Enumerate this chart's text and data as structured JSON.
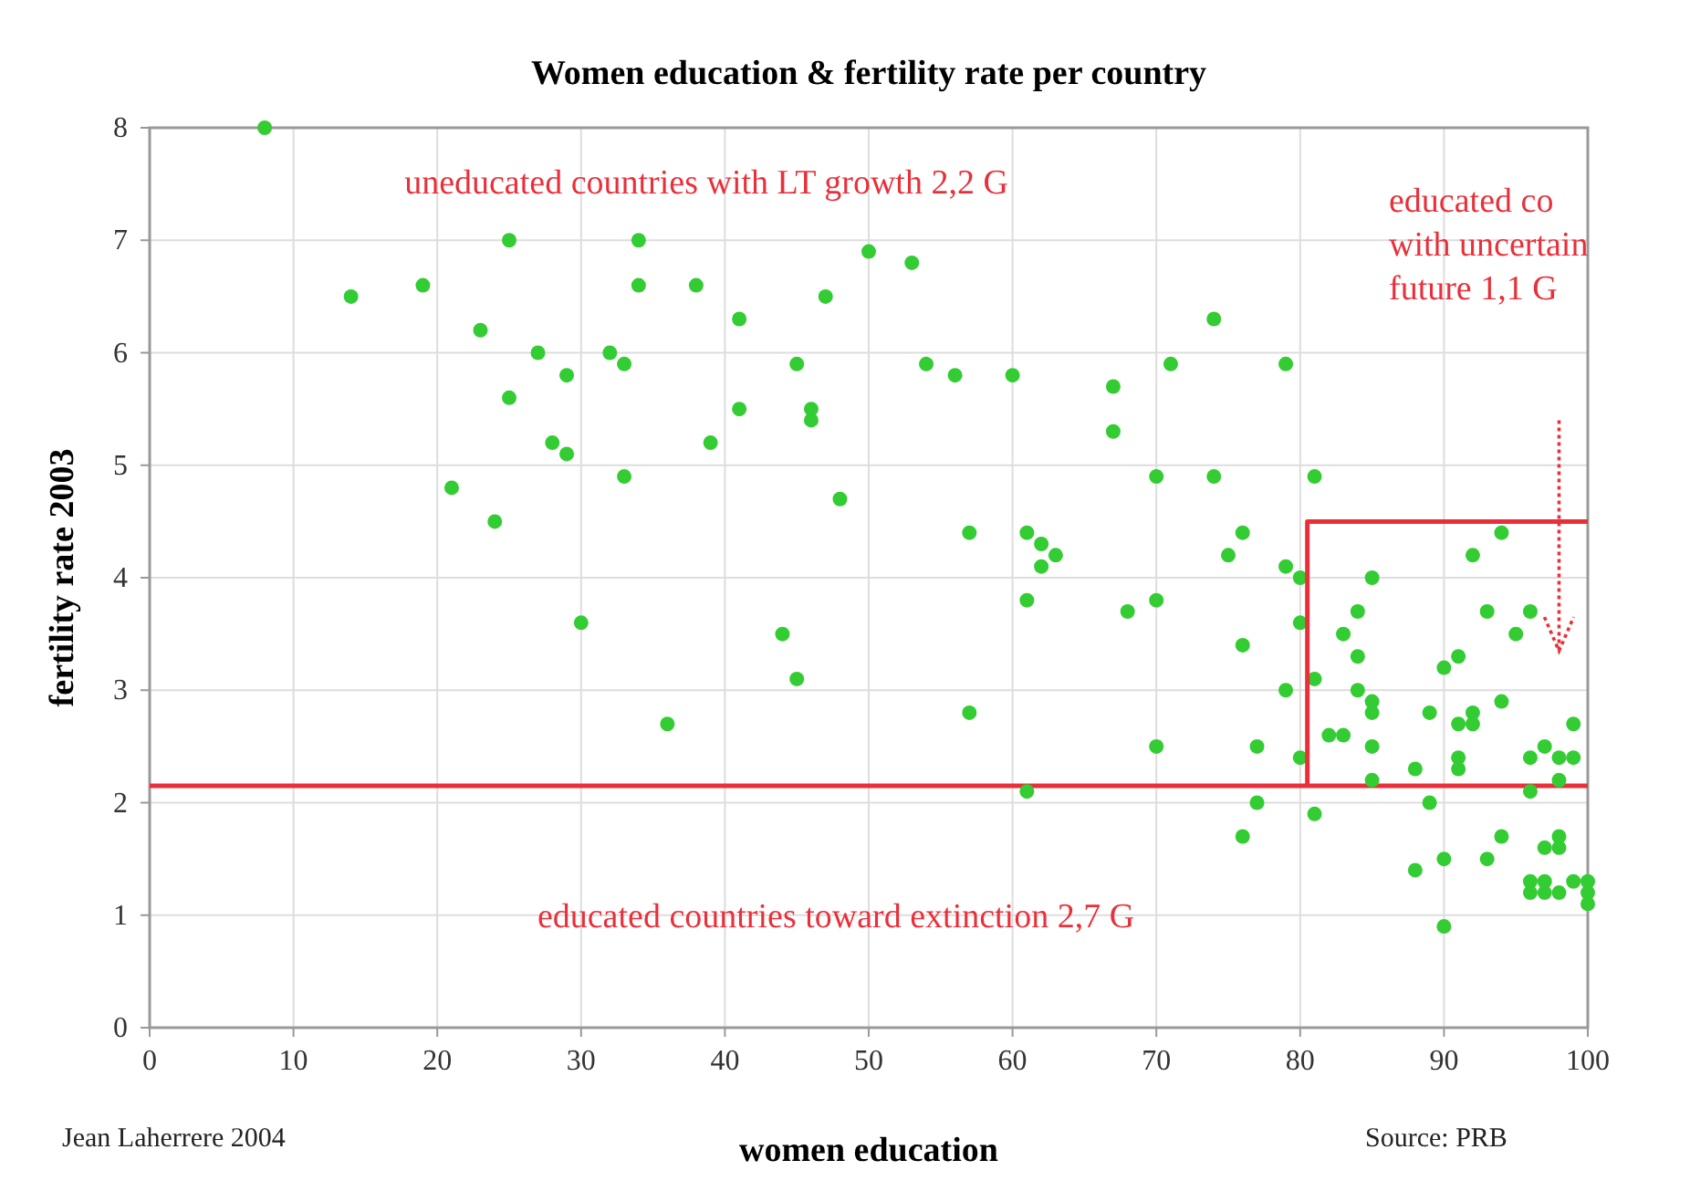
{
  "chart_data": {
    "type": "scatter",
    "title": "Women education & fertility rate per country",
    "xlabel": "women education",
    "ylabel": "fertility rate 2003",
    "xlim": [
      0,
      100
    ],
    "xticks": [
      0,
      10,
      20,
      30,
      40,
      50,
      60,
      70,
      80,
      90,
      100
    ],
    "ylim": [
      0,
      8
    ],
    "yticks": [
      0,
      1,
      2,
      3,
      4,
      5,
      6,
      7,
      8
    ],
    "grid": true,
    "marker": "circle",
    "series": [
      {
        "color": "#33cc33",
        "x": [
          8,
          14,
          19,
          21,
          23,
          24,
          25,
          25,
          27,
          28,
          29,
          29,
          30,
          32,
          33,
          33,
          34,
          34,
          36,
          38,
          39,
          41,
          41,
          44,
          45,
          45,
          46,
          46,
          47,
          48,
          50,
          53,
          54,
          56,
          57,
          57,
          60,
          61,
          61,
          61,
          62,
          62,
          63,
          67,
          67,
          68,
          70,
          70,
          70,
          71,
          74,
          74,
          75,
          76,
          76,
          76,
          77,
          77,
          79,
          79,
          79,
          80,
          80,
          80,
          81,
          81,
          81,
          82,
          83,
          83,
          84,
          84,
          84,
          85,
          85,
          85,
          85,
          85,
          88,
          88,
          89,
          89,
          90,
          90,
          90,
          91,
          91,
          91,
          91,
          92,
          92,
          92,
          93,
          93,
          94,
          94,
          94,
          95,
          96,
          96,
          96,
          96,
          96,
          97,
          97,
          97,
          97,
          98,
          98,
          98,
          98,
          98,
          99,
          99,
          99,
          100,
          100,
          100
        ],
        "values": [
          8.0,
          6.5,
          6.6,
          4.8,
          6.2,
          4.5,
          7.0,
          5.6,
          6.0,
          5.2,
          5.8,
          5.1,
          3.6,
          6.0,
          5.9,
          4.9,
          7.0,
          6.6,
          2.7,
          6.6,
          5.2,
          6.3,
          5.5,
          3.5,
          5.9,
          3.1,
          5.5,
          5.4,
          6.5,
          4.7,
          6.9,
          6.8,
          5.9,
          5.8,
          4.4,
          2.8,
          5.8,
          4.4,
          3.8,
          2.1,
          4.3,
          4.1,
          4.2,
          5.7,
          5.3,
          3.7,
          4.9,
          3.8,
          2.5,
          5.9,
          6.3,
          4.9,
          4.2,
          4.4,
          3.4,
          1.7,
          2.5,
          2.0,
          5.9,
          4.1,
          3.0,
          4.0,
          3.6,
          2.4,
          4.9,
          3.1,
          1.9,
          2.6,
          3.5,
          2.6,
          3.7,
          3.3,
          3.0,
          4.0,
          2.9,
          2.8,
          2.5,
          2.2,
          2.3,
          1.4,
          2.8,
          2.0,
          3.2,
          1.5,
          0.9,
          3.3,
          2.7,
          2.4,
          2.3,
          4.2,
          2.8,
          2.7,
          3.7,
          1.5,
          4.4,
          2.9,
          1.7,
          3.5,
          3.7,
          2.4,
          2.1,
          1.3,
          1.2,
          2.5,
          1.6,
          1.3,
          1.2,
          2.4,
          2.2,
          1.7,
          1.6,
          1.2,
          2.7,
          2.4,
          1.3,
          1.3,
          1.2,
          1.1
        ]
      },
      {
        "type": "line",
        "color": "#e8303a",
        "marker": "none",
        "line_style": "solid",
        "x": [
          80.5,
          80.5,
          100
        ],
        "values": [
          2.15,
          4.5,
          4.5
        ]
      }
    ],
    "ref_lines": [
      {
        "axis": "y",
        "value": 2.15,
        "color": "#e8303a",
        "line_style": "solid"
      }
    ],
    "annotations": [
      "uneducated countries with LT growth  2,2 G",
      "educated co\nwith uncertain\nfuture 1,1 G",
      "educated countries toward extinction 2,7 G",
      "Jean Laherrere 2004",
      "Source: PRB"
    ]
  }
}
